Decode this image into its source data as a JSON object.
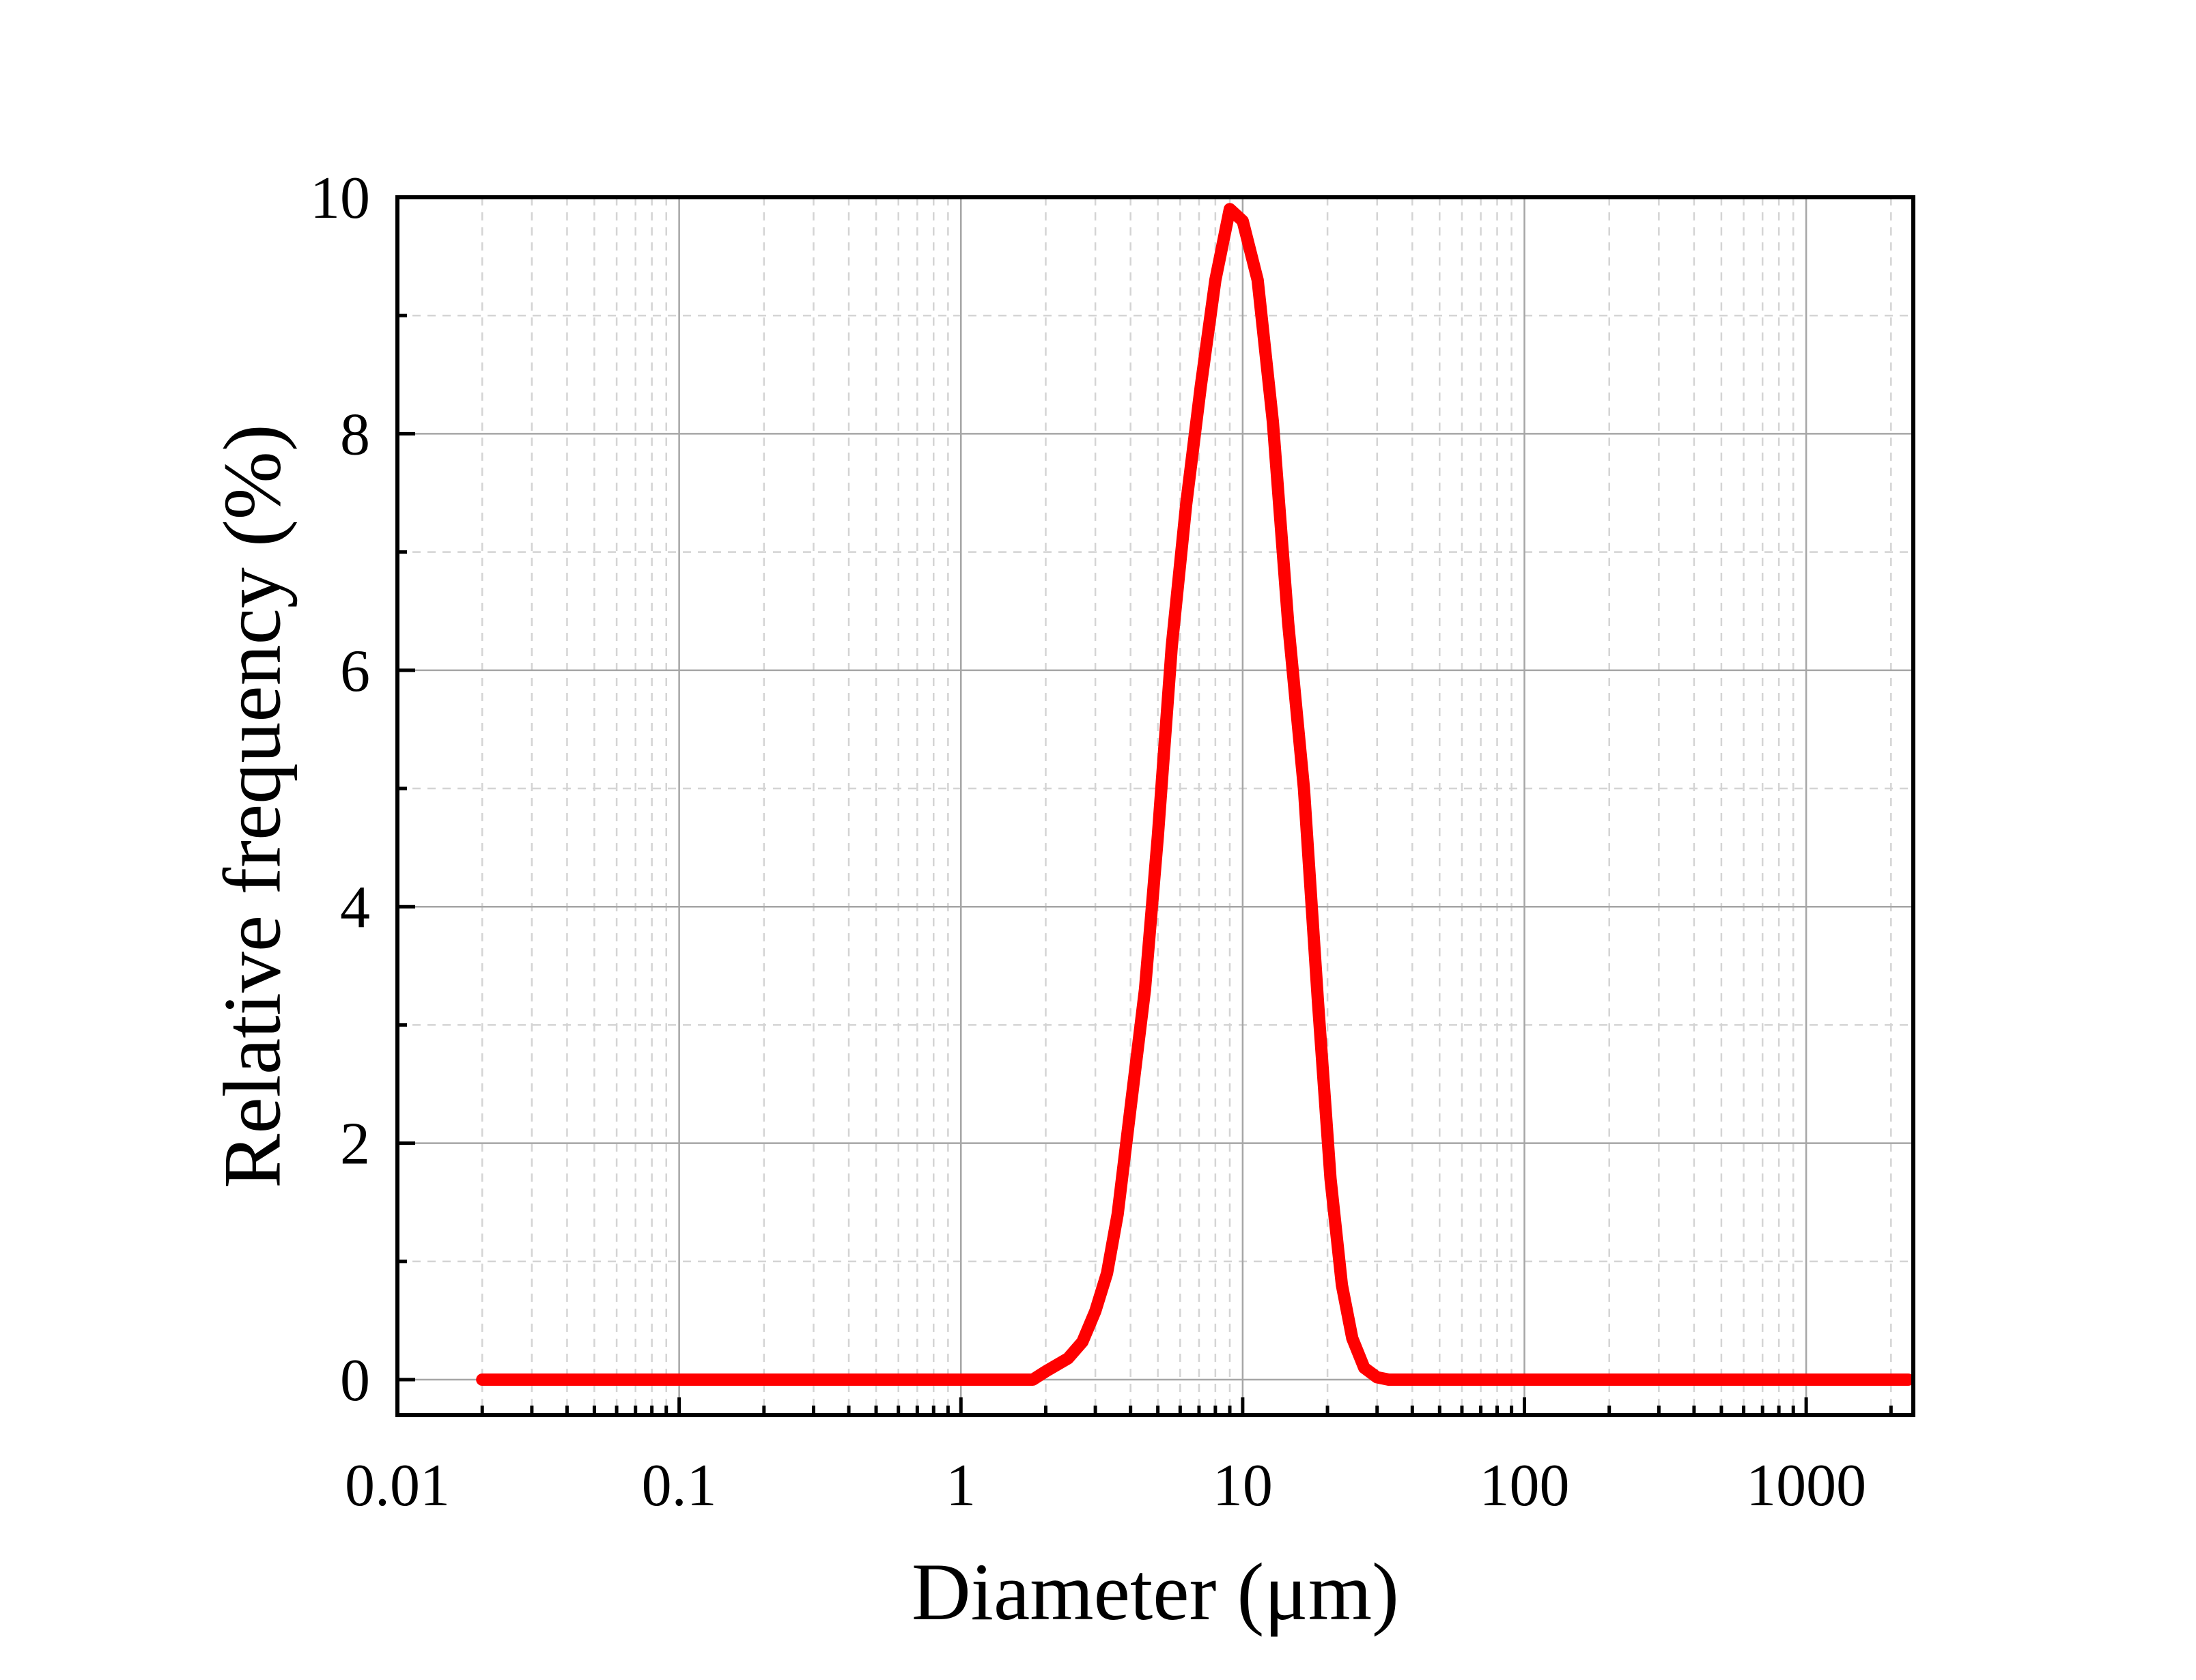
{
  "chart_data": {
    "type": "line",
    "xlabel": "Diameter (μm)",
    "ylabel": "Relative frequency (%)",
    "xscale": "log",
    "xlim": [
      0.01,
      2400
    ],
    "ylim": [
      -0.3,
      10
    ],
    "x_ticks": [
      0.01,
      0.1,
      1,
      10,
      100,
      1000
    ],
    "x_tick_labels": [
      "0.01",
      "0.1",
      "1",
      "10",
      "100",
      "1000"
    ],
    "y_ticks": [
      0,
      2,
      4,
      6,
      8,
      10
    ],
    "y_tick_labels": [
      "0",
      "2",
      "4",
      "6",
      "8",
      "10"
    ],
    "grid": true,
    "series": [
      {
        "color": "#ff0000",
        "x": [
          0.02,
          0.1,
          1.0,
          1.8,
          2.0,
          2.4,
          2.7,
          3.0,
          3.3,
          3.6,
          4.0,
          4.5,
          5.0,
          5.6,
          6.3,
          7.1,
          8.0,
          9.0,
          10.0,
          11.3,
          12.8,
          14.5,
          16.5,
          18.5,
          20.5,
          22.5,
          24.5,
          27.0,
          30.0,
          33.0,
          37.0,
          41.0,
          45.0,
          100.0,
          1000.0,
          2300.0
        ],
        "y": [
          0,
          0,
          0,
          0,
          0.07,
          0.18,
          0.32,
          0.58,
          0.9,
          1.4,
          2.3,
          3.3,
          4.6,
          6.2,
          7.4,
          8.4,
          9.3,
          9.9,
          9.8,
          9.3,
          8.1,
          6.4,
          5.0,
          3.2,
          1.7,
          0.8,
          0.35,
          0.1,
          0.02,
          0,
          0,
          0,
          0,
          0,
          0,
          0
        ]
      }
    ]
  }
}
